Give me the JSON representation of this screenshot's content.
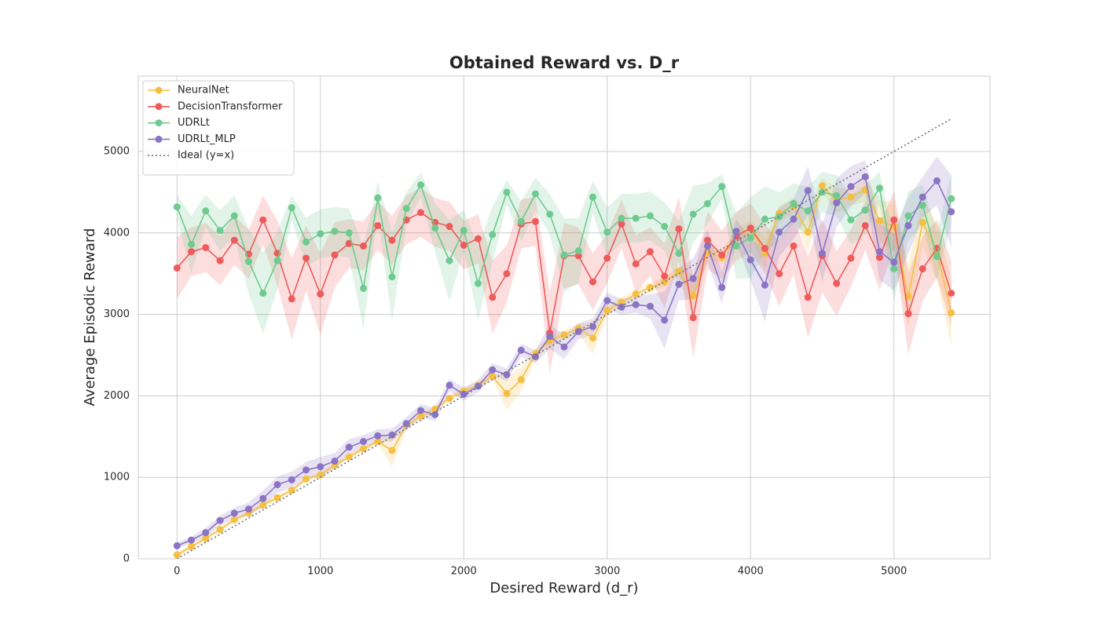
{
  "chart_data": {
    "type": "line",
    "title": "Obtained Reward vs. D_r",
    "xlabel": "Desired Reward (d_r)",
    "ylabel": "Average Episodic Reward",
    "xlim": [
      -270,
      5670
    ],
    "ylim": [
      0,
      5925
    ],
    "xticks": [
      0,
      1000,
      2000,
      3000,
      4000,
      5000
    ],
    "yticks": [
      0,
      1000,
      2000,
      3000,
      4000,
      5000
    ],
    "grid": true,
    "legend": "upper left",
    "x": [
      0,
      100,
      200,
      300,
      400,
      500,
      600,
      700,
      800,
      900,
      1000,
      1100,
      1200,
      1300,
      1400,
      1500,
      1600,
      1700,
      1800,
      1900,
      2000,
      2100,
      2200,
      2300,
      2400,
      2500,
      2600,
      2700,
      2800,
      2900,
      3000,
      3100,
      3200,
      3300,
      3400,
      3500,
      3600,
      3700,
      3800,
      3900,
      4000,
      4100,
      4200,
      4300,
      4400,
      4500,
      4600,
      4700,
      4800,
      4900,
      5000,
      5100,
      5200,
      5300,
      5400
    ],
    "series": [
      {
        "name": "NeuralNet",
        "color": "#f5bf42",
        "values": [
          48,
          150,
          250,
          360,
          480,
          560,
          660,
          750,
          840,
          980,
          1030,
          1150,
          1250,
          1350,
          1440,
          1330,
          1640,
          1750,
          1840,
          1970,
          2060,
          2130,
          2240,
          2030,
          2200,
          2520,
          2680,
          2750,
          2830,
          2710,
          3050,
          3150,
          3250,
          3330,
          3400,
          3530,
          3230,
          3770,
          3700,
          3950,
          4050,
          3750,
          4240,
          4330,
          4010,
          4580,
          4400,
          4440,
          4530,
          4150,
          4080,
          3220,
          4130,
          3760,
          3020
        ],
        "errors": [
          30,
          30,
          30,
          30,
          30,
          30,
          30,
          30,
          30,
          30,
          30,
          30,
          30,
          30,
          30,
          200,
          40,
          40,
          40,
          40,
          40,
          40,
          40,
          200,
          150,
          60,
          60,
          60,
          60,
          200,
          60,
          60,
          60,
          60,
          60,
          60,
          250,
          80,
          80,
          100,
          100,
          200,
          100,
          100,
          250,
          100,
          150,
          100,
          150,
          250,
          300,
          400,
          300,
          350,
          400
        ]
      },
      {
        "name": "DecisionTransformer",
        "color": "#ee5b5b",
        "values": [
          3570,
          3770,
          3820,
          3660,
          3910,
          3740,
          4160,
          3750,
          3190,
          3690,
          3250,
          3730,
          3870,
          3840,
          4090,
          3910,
          4160,
          4250,
          4130,
          4080,
          3850,
          3930,
          3210,
          3500,
          4110,
          4140,
          2770,
          3720,
          3720,
          3400,
          3690,
          4110,
          3620,
          3770,
          3470,
          4050,
          2960,
          3910,
          3730,
          3960,
          4060,
          3810,
          3500,
          3840,
          3210,
          3720,
          3380,
          3690,
          4090,
          3700,
          4160,
          3010,
          3560,
          3810,
          3260
        ],
        "errors": [
          380,
          300,
          300,
          300,
          300,
          300,
          300,
          400,
          500,
          400,
          500,
          400,
          300,
          300,
          300,
          300,
          300,
          300,
          300,
          300,
          300,
          300,
          450,
          350,
          300,
          300,
          500,
          400,
          350,
          350,
          300,
          300,
          350,
          300,
          400,
          400,
          500,
          350,
          300,
          300,
          300,
          300,
          400,
          350,
          500,
          450,
          400,
          350,
          300,
          400,
          350,
          500,
          400,
          350,
          400
        ]
      },
      {
        "name": "UDRLt",
        "color": "#6fca8f",
        "values": [
          4320,
          3860,
          4270,
          4030,
          4210,
          3650,
          3260,
          3660,
          4310,
          3890,
          3990,
          4020,
          4000,
          3320,
          4430,
          3460,
          4300,
          4590,
          4060,
          3660,
          4030,
          3380,
          3980,
          4500,
          4140,
          4480,
          4230,
          3730,
          3780,
          4440,
          4010,
          4180,
          4180,
          4210,
          4080,
          3750,
          4230,
          4360,
          4570,
          3840,
          3940,
          4170,
          4200,
          4360,
          4270,
          4500,
          4460,
          4160,
          4280,
          4550,
          3560,
          4210,
          4340,
          3710,
          4420
        ],
        "errors": [
          150,
          350,
          200,
          250,
          250,
          400,
          500,
          350,
          150,
          300,
          300,
          300,
          300,
          500,
          200,
          550,
          200,
          150,
          300,
          500,
          250,
          450,
          350,
          150,
          250,
          200,
          250,
          450,
          400,
          200,
          300,
          300,
          300,
          300,
          300,
          400,
          350,
          250,
          150,
          400,
          500,
          400,
          300,
          250,
          300,
          250,
          250,
          300,
          300,
          200,
          400,
          300,
          250,
          300,
          300
        ]
      },
      {
        "name": "UDRLt_MLP",
        "color": "#8b74c4",
        "values": [
          160,
          230,
          320,
          470,
          560,
          610,
          740,
          910,
          970,
          1090,
          1130,
          1200,
          1370,
          1440,
          1510,
          1520,
          1660,
          1820,
          1770,
          2130,
          2020,
          2120,
          2320,
          2260,
          2560,
          2480,
          2730,
          2600,
          2790,
          2850,
          3170,
          3090,
          3120,
          3100,
          2930,
          3370,
          3440,
          3840,
          3330,
          4020,
          3670,
          3360,
          4010,
          4170,
          4520,
          3750,
          4370,
          4570,
          4690,
          3770,
          3640,
          4090,
          4440,
          4640,
          4260
        ],
        "errors": [
          40,
          40,
          60,
          60,
          70,
          80,
          100,
          100,
          100,
          100,
          120,
          100,
          100,
          80,
          80,
          80,
          80,
          80,
          80,
          80,
          80,
          80,
          80,
          80,
          80,
          80,
          150,
          150,
          100,
          100,
          100,
          100,
          100,
          150,
          350,
          200,
          250,
          200,
          200,
          150,
          250,
          450,
          300,
          250,
          300,
          350,
          300,
          250,
          200,
          350,
          350,
          350,
          250,
          300,
          450
        ]
      }
    ],
    "ideal": {
      "name": "Ideal (y=x)",
      "color": "#707070",
      "x": [
        0,
        5400
      ],
      "values": [
        0,
        5400
      ]
    }
  }
}
